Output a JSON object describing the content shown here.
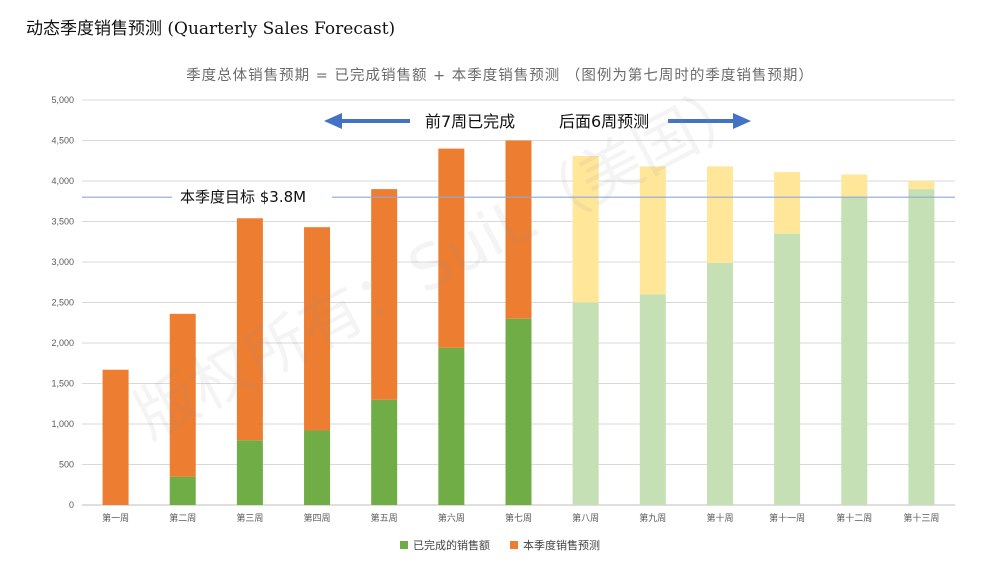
{
  "page_title": "动态季度销售预测 (Quarterly Sales Forecast)",
  "watermark": "版权所有：SuiL（美国）",
  "colors": {
    "completed": "#70ad47",
    "forecast": "#ed7d31",
    "future_completed": "#c5e0b4",
    "future_forecast": "#ffe699",
    "arrow": "#4472c4",
    "target_line": "#8ea9db",
    "grid": "#d9d9d9"
  },
  "annotations": {
    "left_text": "前7周已完成",
    "right_text": "后面6周预测",
    "target_label": "本季度目标 $3.8M"
  },
  "chart_data": {
    "type": "bar",
    "stacked": true,
    "title": "季度总体销售预期 = 已完成销售额 + 本季度销售预测 （图例为第七周时的季度销售预期）",
    "categories": [
      "第一周",
      "第二周",
      "第三周",
      "第四周",
      "第五周",
      "第六周",
      "第七周",
      "第八周",
      "第九周",
      "第十周",
      "第十一周",
      "第十二周",
      "第十三周"
    ],
    "series": [
      {
        "name": "已完成的销售额",
        "values": [
          0,
          350,
          800,
          920,
          1300,
          1940,
          2300,
          2500,
          2600,
          2990,
          3350,
          3800,
          3900
        ]
      },
      {
        "name": "本季度销售预测",
        "values": [
          1670,
          2010,
          2740,
          2510,
          2600,
          2460,
          2200,
          1810,
          1580,
          1190,
          760,
          280,
          100
        ]
      }
    ],
    "completed_weeks": 7,
    "target": 3800,
    "ylim": [
      0,
      5000
    ],
    "yticks": [
      "0",
      "500",
      "1,000",
      "1,500",
      "2,000",
      "2,500",
      "3,000",
      "3,500",
      "4,000",
      "4,500",
      "5,000"
    ],
    "ytick_values": [
      0,
      500,
      1000,
      1500,
      2000,
      2500,
      3000,
      3500,
      4000,
      4500,
      5000
    ],
    "grid": true,
    "legend_position": "bottom"
  }
}
